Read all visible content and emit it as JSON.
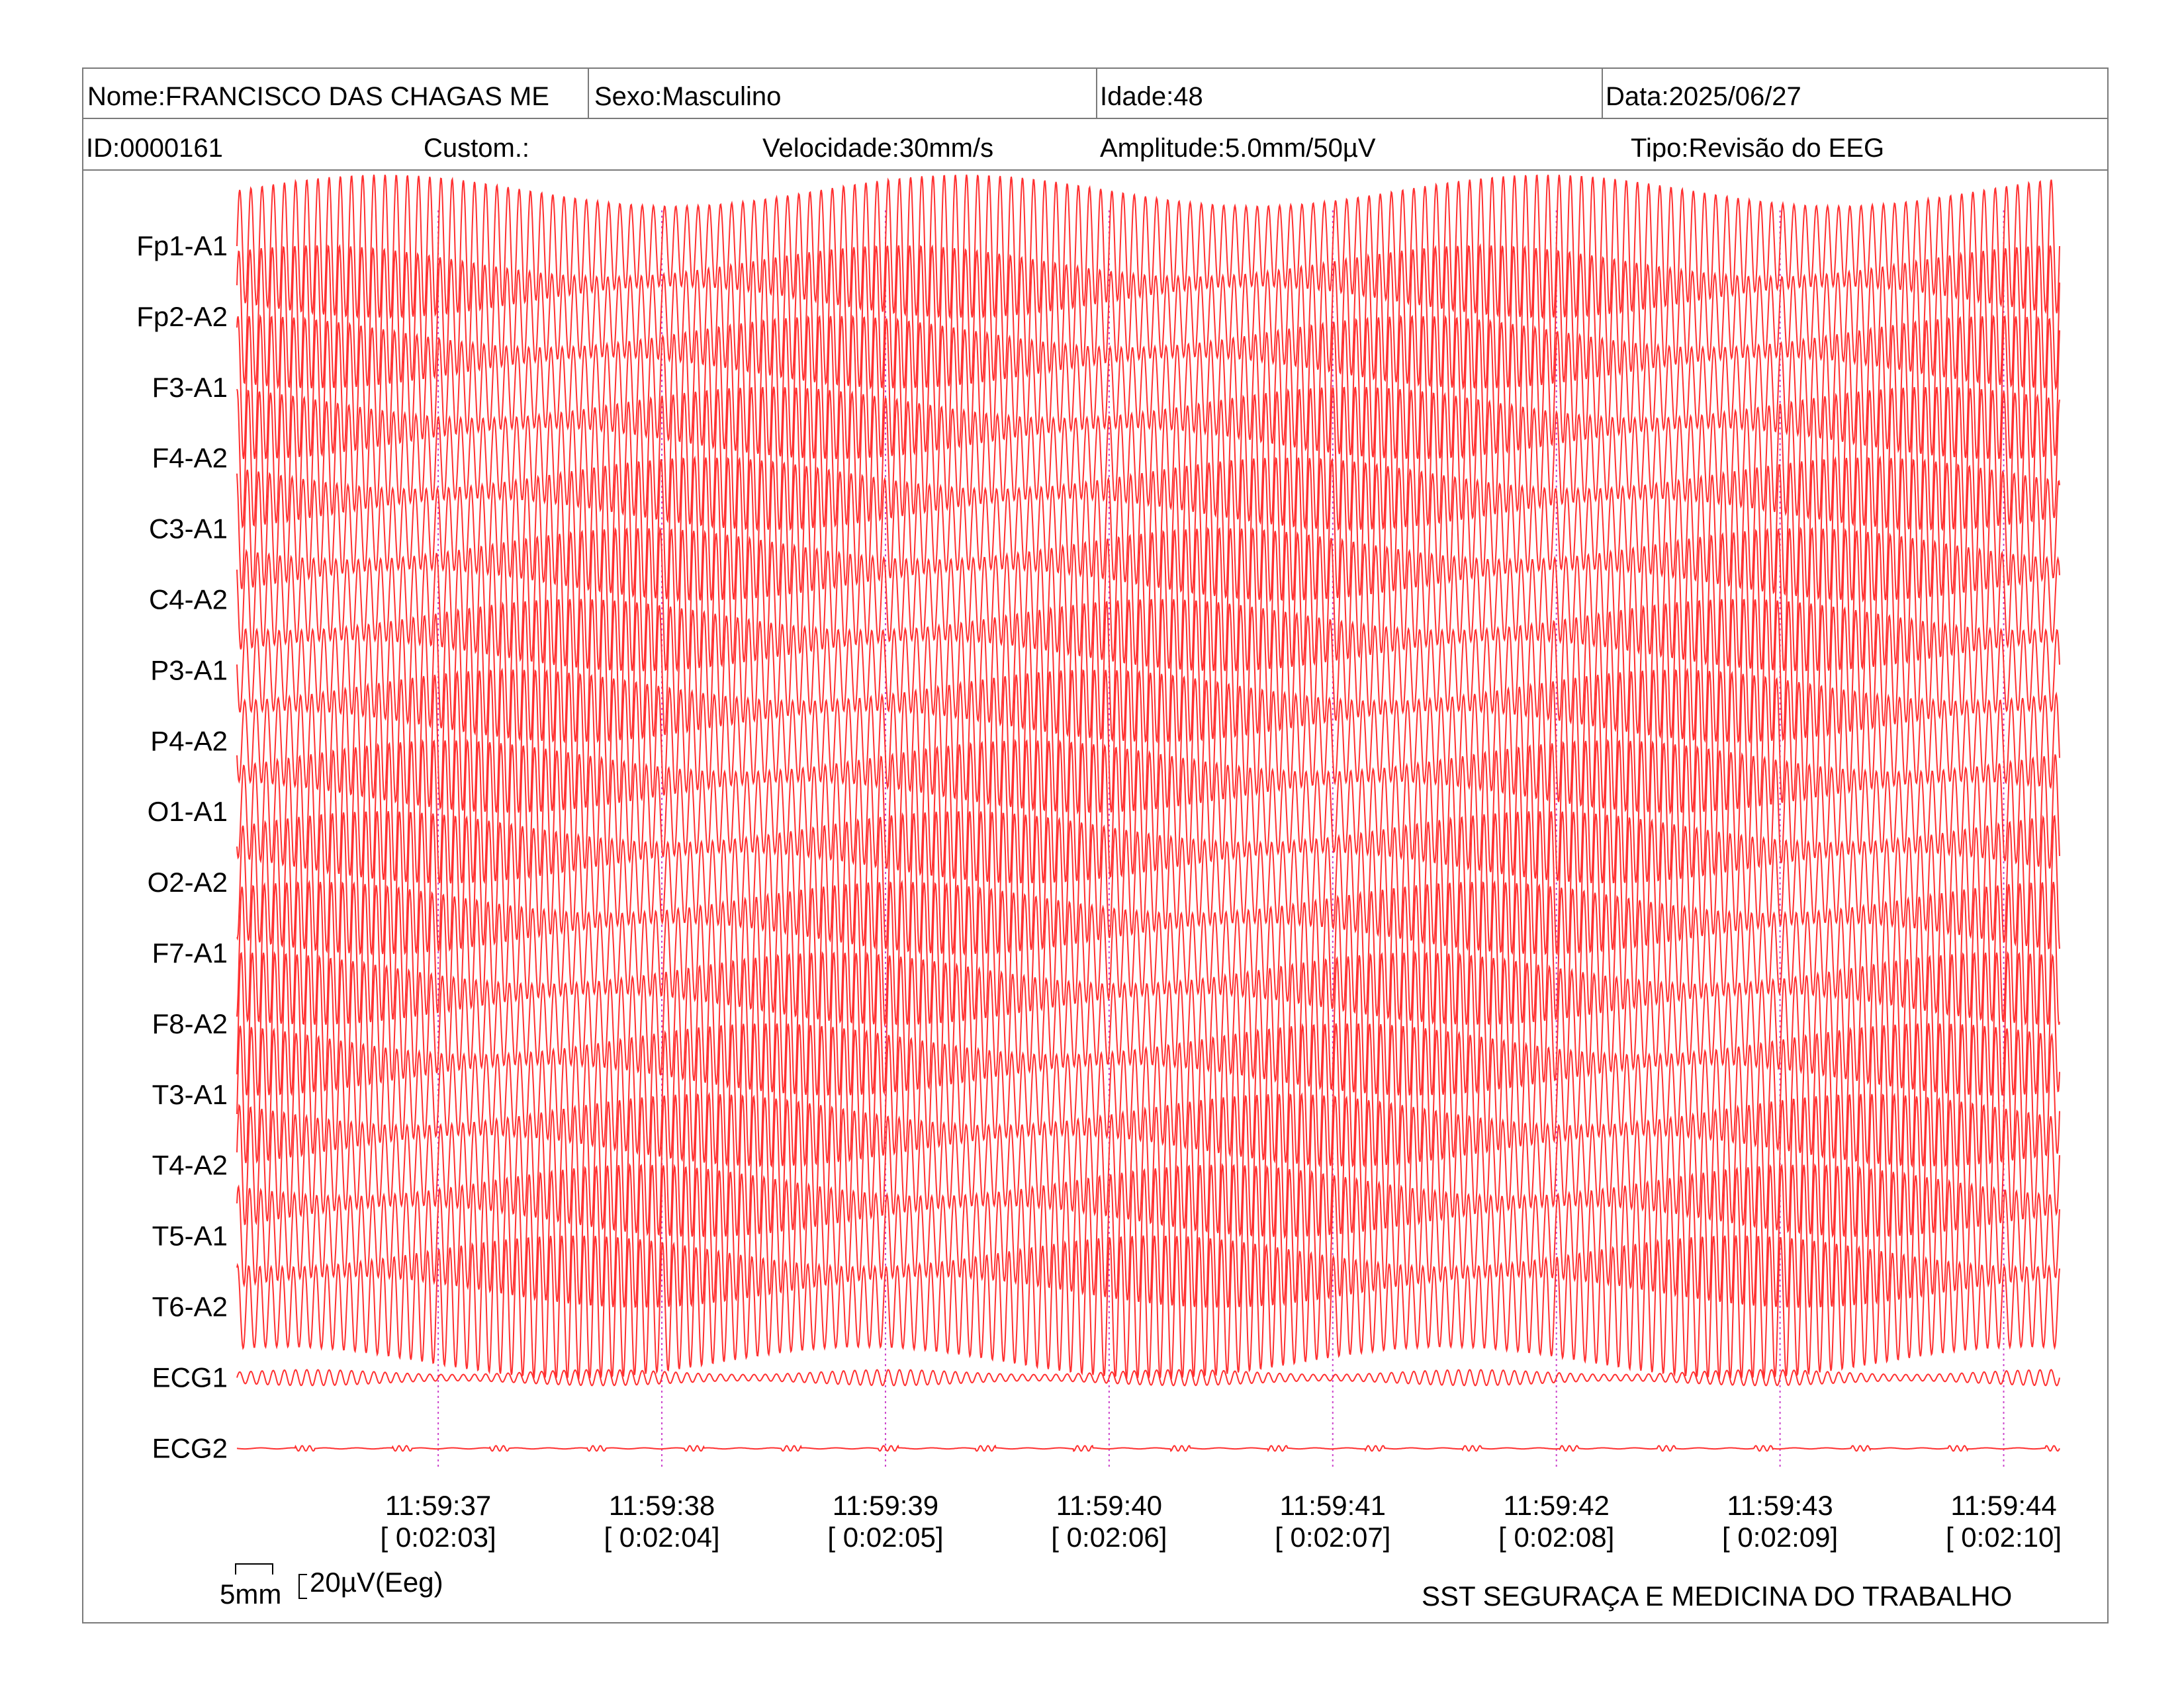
{
  "header": {
    "nome": "Nome:FRANCISCO DAS CHAGAS ME",
    "sexo": "Sexo:Masculino",
    "idade": "Idade:48",
    "data": "Data:2025/06/27",
    "id": "ID:0000161",
    "custom": "Custom.:",
    "velocidade": "Velocidade:30mm/s",
    "amplitude": "Amplitude:5.0mm/50µV",
    "tipo": "Tipo:Revisão do EEG"
  },
  "chart_data": {
    "type": "line",
    "title": "",
    "channels": [
      "Fp1-A1",
      "Fp2-A2",
      "F3-A1",
      "F4-A2",
      "C3-A1",
      "C4-A2",
      "P3-A1",
      "P4-A2",
      "O1-A1",
      "O2-A2",
      "F7-A1",
      "F8-A2",
      "T3-A1",
      "T4-A2",
      "T5-A1",
      "T6-A2",
      "ECG1",
      "ECG2"
    ],
    "time_labels": [
      "11:59:37",
      "11:59:38",
      "11:59:39",
      "11:59:40",
      "11:59:41",
      "11:59:42",
      "11:59:43",
      "11:59:44"
    ],
    "elapsed_labels": [
      "[ 0:02:03]",
      "[ 0:02:04]",
      "[ 0:02:05]",
      "[ 0:02:06]",
      "[ 0:02:07]",
      "[ 0:02:08]",
      "[ 0:02:09]",
      "[ 0:02:10]"
    ],
    "time_range_s": [
      0,
      8.15
    ],
    "first_mark_s": 0.9,
    "eeg_frequency_hz": 20,
    "trace_color": "#ff3030",
    "marker_color": "#cc44cc",
    "scale_labels": {
      "time": "5mm",
      "amplitude": "20µV(Eeg)"
    }
  },
  "footer": {
    "company": "SST SEGURAÇA E MEDICINA DO TRABALHO"
  }
}
